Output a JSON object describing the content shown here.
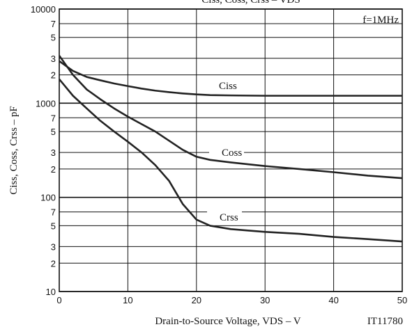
{
  "chart_data": {
    "type": "line",
    "title": "Ciss, Coss, Crss – VDS",
    "x_label": "Drain-to-Source Voltage, VDS – V",
    "y_label": "Ciss, Coss, Crss – pF",
    "annotations": [
      "f=1MHz",
      "IT11780"
    ],
    "x": [
      0,
      2,
      4,
      6,
      8,
      10,
      12,
      14,
      16,
      18,
      20,
      22,
      25,
      30,
      35,
      40,
      45,
      50
    ],
    "series": [
      {
        "name": "Ciss",
        "color": "#222222",
        "values": [
          2800,
          2200,
          1900,
          1750,
          1620,
          1520,
          1430,
          1360,
          1310,
          1270,
          1240,
          1220,
          1210,
          1200,
          1200,
          1200,
          1200,
          1200
        ]
      },
      {
        "name": "Coss",
        "color": "#222222",
        "values": [
          3200,
          2000,
          1400,
          1100,
          880,
          720,
          600,
          500,
          400,
          320,
          270,
          250,
          235,
          215,
          200,
          185,
          170,
          160
        ]
      },
      {
        "name": "Crss",
        "color": "#222222",
        "values": [
          1800,
          1200,
          880,
          650,
          500,
          390,
          300,
          220,
          150,
          85,
          58,
          50,
          46,
          43,
          41,
          38,
          36,
          34
        ]
      }
    ],
    "xlim": [
      0,
      50
    ],
    "xticks": [
      0,
      10,
      20,
      30,
      40,
      50
    ],
    "ylim": [
      10,
      10000
    ],
    "log_y": true,
    "yticks": [
      10,
      {
        "value": 20,
        "label": "2"
      },
      {
        "value": 30,
        "label": "3"
      },
      {
        "value": 50,
        "label": "5"
      },
      {
        "value": 70,
        "label": "7"
      },
      100,
      {
        "value": 200,
        "label": "2"
      },
      {
        "value": 300,
        "label": "3"
      },
      {
        "value": 500,
        "label": "5"
      },
      {
        "value": 700,
        "label": "7"
      },
      1000,
      {
        "value": 2000,
        "label": "2"
      },
      {
        "value": 3000,
        "label": "3"
      },
      {
        "value": 5000,
        "label": "5"
      },
      {
        "value": 7000,
        "label": "7"
      },
      10000
    ],
    "grid": true
  }
}
